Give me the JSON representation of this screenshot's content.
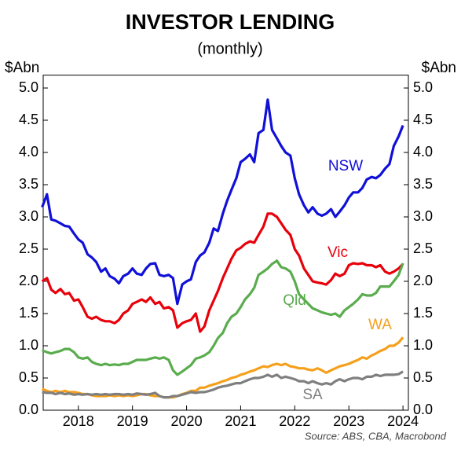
{
  "chart_data": {
    "type": "line",
    "title": "INVESTOR LENDING",
    "subtitle": "(monthly)",
    "y_label": "$Abn",
    "y2_label": "$Abn",
    "source": "Source: ABS, CBA, Macrobond",
    "x": [
      2017.33,
      2017.42,
      2017.5,
      2017.58,
      2017.67,
      2017.75,
      2017.83,
      2017.92,
      2018,
      2018.08,
      2018.17,
      2018.25,
      2018.33,
      2018.42,
      2018.5,
      2018.58,
      2018.67,
      2018.75,
      2018.83,
      2018.92,
      2019,
      2019.08,
      2019.17,
      2019.25,
      2019.33,
      2019.42,
      2019.5,
      2019.58,
      2019.67,
      2019.75,
      2019.83,
      2019.92,
      2020,
      2020.08,
      2020.17,
      2020.25,
      2020.33,
      2020.42,
      2020.5,
      2020.58,
      2020.67,
      2020.75,
      2020.83,
      2020.92,
      2021,
      2021.08,
      2021.17,
      2021.25,
      2021.33,
      2021.42,
      2021.5,
      2021.58,
      2021.67,
      2021.75,
      2021.83,
      2021.92,
      2022,
      2022.08,
      2022.17,
      2022.25,
      2022.33,
      2022.42,
      2022.5,
      2022.58,
      2022.67,
      2022.75,
      2022.83,
      2022.92,
      2023,
      2023.08,
      2023.17,
      2023.25,
      2023.33,
      2023.42,
      2023.5,
      2023.58,
      2023.67,
      2023.75,
      2023.83,
      2023.92,
      2024
    ],
    "xlim": [
      2017.35,
      2024.1
    ],
    "xticks": [
      2018,
      2019,
      2020,
      2021,
      2022,
      2023,
      2024
    ],
    "ylim": [
      0,
      5.2
    ],
    "yticks": [
      {
        "value": 0,
        "label": "0.0"
      },
      {
        "value": 0.5,
        "label": "0.5"
      },
      {
        "value": 1,
        "label": "1.0"
      },
      {
        "value": 1.5,
        "label": "1.5"
      },
      {
        "value": 2,
        "label": "2.0"
      },
      {
        "value": 2.5,
        "label": "2.5"
      },
      {
        "value": 3,
        "label": "3.0"
      },
      {
        "value": 3.5,
        "label": "3.5"
      },
      {
        "value": 4,
        "label": "4.0"
      },
      {
        "value": 4.5,
        "label": "4.5"
      },
      {
        "value": 5,
        "label": "5.0"
      }
    ],
    "y2lim": [
      0,
      5.2
    ],
    "y2ticks": [
      {
        "value": 0,
        "label": "0.0"
      },
      {
        "value": 0.5,
        "label": "0.5"
      },
      {
        "value": 1,
        "label": "1.0"
      },
      {
        "value": 1.5,
        "label": "1.5"
      },
      {
        "value": 2,
        "label": "2.0"
      },
      {
        "value": 2.5,
        "label": "2.5"
      },
      {
        "value": 3,
        "label": "3.0"
      },
      {
        "value": 3.5,
        "label": "3.5"
      },
      {
        "value": 4,
        "label": "4.0"
      },
      {
        "value": 4.5,
        "label": "4.5"
      },
      {
        "value": 5,
        "label": "5.0"
      }
    ],
    "grid": false,
    "series": [
      {
        "name": "NSW",
        "color": "#1010d8",
        "values": [
          3.15,
          3.35,
          2.96,
          2.94,
          2.9,
          2.86,
          2.85,
          2.74,
          2.65,
          2.6,
          2.42,
          2.37,
          2.3,
          2.15,
          2.2,
          2.08,
          2.04,
          1.97,
          2.08,
          2.12,
          2.2,
          2.12,
          2.1,
          2.2,
          2.27,
          2.28,
          2.1,
          2.08,
          2.1,
          2.05,
          1.65,
          1.95,
          2.0,
          2.03,
          2.3,
          2.4,
          2.45,
          2.6,
          2.82,
          2.78,
          3.05,
          3.25,
          3.42,
          3.6,
          3.85,
          3.9,
          3.97,
          3.85,
          4.3,
          4.35,
          4.82,
          4.35,
          4.22,
          4.1,
          4.0,
          3.95,
          3.6,
          3.35,
          3.18,
          3.07,
          3.15,
          3.05,
          3.02,
          3.05,
          3.12,
          3.0,
          3.08,
          3.18,
          3.3,
          3.38,
          3.38,
          3.45,
          3.58,
          3.62,
          3.6,
          3.65,
          3.75,
          3.82,
          4.1,
          4.25,
          4.42
        ]
      },
      {
        "name": "Vic",
        "color": "#e8000b",
        "values": [
          2.0,
          2.05,
          1.87,
          1.82,
          1.88,
          1.8,
          1.82,
          1.7,
          1.72,
          1.6,
          1.45,
          1.42,
          1.45,
          1.4,
          1.38,
          1.38,
          1.35,
          1.4,
          1.5,
          1.55,
          1.65,
          1.68,
          1.72,
          1.68,
          1.75,
          1.65,
          1.68,
          1.58,
          1.6,
          1.55,
          1.28,
          1.35,
          1.38,
          1.4,
          1.5,
          1.22,
          1.3,
          1.55,
          1.7,
          1.85,
          2.05,
          2.2,
          2.35,
          2.48,
          2.52,
          2.58,
          2.62,
          2.6,
          2.72,
          2.85,
          3.05,
          3.05,
          3.0,
          2.9,
          2.8,
          2.72,
          2.5,
          2.4,
          2.2,
          2.1,
          2.0,
          1.98,
          1.97,
          1.95,
          2.02,
          2.12,
          2.08,
          2.12,
          2.25,
          2.28,
          2.27,
          2.28,
          2.25,
          2.25,
          2.22,
          2.25,
          2.15,
          2.12,
          2.15,
          2.2,
          2.27
        ]
      },
      {
        "name": "Qld",
        "color": "#5aac4e",
        "values": [
          0.93,
          0.9,
          0.88,
          0.9,
          0.92,
          0.95,
          0.95,
          0.9,
          0.82,
          0.8,
          0.82,
          0.75,
          0.72,
          0.7,
          0.72,
          0.7,
          0.71,
          0.7,
          0.72,
          0.72,
          0.75,
          0.78,
          0.78,
          0.78,
          0.8,
          0.82,
          0.8,
          0.82,
          0.78,
          0.62,
          0.55,
          0.6,
          0.65,
          0.7,
          0.8,
          0.82,
          0.85,
          0.9,
          1.0,
          1.12,
          1.2,
          1.35,
          1.45,
          1.5,
          1.6,
          1.72,
          1.8,
          1.9,
          2.1,
          2.15,
          2.2,
          2.27,
          2.32,
          2.22,
          2.2,
          2.15,
          2.0,
          1.8,
          1.72,
          1.65,
          1.58,
          1.55,
          1.52,
          1.5,
          1.48,
          1.5,
          1.45,
          1.55,
          1.6,
          1.65,
          1.72,
          1.8,
          1.78,
          1.78,
          1.82,
          1.92,
          1.92,
          1.92,
          2.0,
          2.1,
          2.28
        ]
      },
      {
        "name": "WA",
        "color": "#f5a01c",
        "values": [
          0.33,
          0.3,
          0.28,
          0.3,
          0.28,
          0.3,
          0.28,
          0.28,
          0.27,
          0.25,
          0.25,
          0.23,
          0.22,
          0.22,
          0.22,
          0.23,
          0.22,
          0.23,
          0.22,
          0.23,
          0.22,
          0.23,
          0.25,
          0.25,
          0.23,
          0.22,
          0.22,
          0.2,
          0.2,
          0.2,
          0.22,
          0.25,
          0.27,
          0.3,
          0.3,
          0.35,
          0.35,
          0.38,
          0.4,
          0.42,
          0.45,
          0.47,
          0.5,
          0.52,
          0.55,
          0.57,
          0.6,
          0.62,
          0.65,
          0.68,
          0.67,
          0.7,
          0.72,
          0.7,
          0.72,
          0.68,
          0.67,
          0.65,
          0.65,
          0.63,
          0.62,
          0.65,
          0.62,
          0.58,
          0.62,
          0.65,
          0.68,
          0.7,
          0.72,
          0.75,
          0.78,
          0.82,
          0.8,
          0.85,
          0.88,
          0.92,
          0.95,
          1.0,
          1.0,
          1.05,
          1.13
        ]
      },
      {
        "name": "SA",
        "color": "#7f7f7f",
        "values": [
          0.28,
          0.27,
          0.27,
          0.25,
          0.27,
          0.25,
          0.26,
          0.24,
          0.25,
          0.24,
          0.25,
          0.24,
          0.25,
          0.24,
          0.25,
          0.24,
          0.25,
          0.25,
          0.24,
          0.25,
          0.24,
          0.26,
          0.25,
          0.24,
          0.25,
          0.27,
          0.22,
          0.2,
          0.2,
          0.22,
          0.22,
          0.24,
          0.26,
          0.28,
          0.27,
          0.28,
          0.28,
          0.3,
          0.32,
          0.35,
          0.37,
          0.38,
          0.4,
          0.42,
          0.42,
          0.45,
          0.48,
          0.5,
          0.5,
          0.52,
          0.55,
          0.52,
          0.55,
          0.5,
          0.52,
          0.5,
          0.48,
          0.45,
          0.45,
          0.42,
          0.45,
          0.42,
          0.4,
          0.42,
          0.4,
          0.45,
          0.48,
          0.45,
          0.48,
          0.5,
          0.5,
          0.48,
          0.52,
          0.52,
          0.55,
          0.53,
          0.55,
          0.55,
          0.55,
          0.56,
          0.6
        ]
      }
    ]
  }
}
